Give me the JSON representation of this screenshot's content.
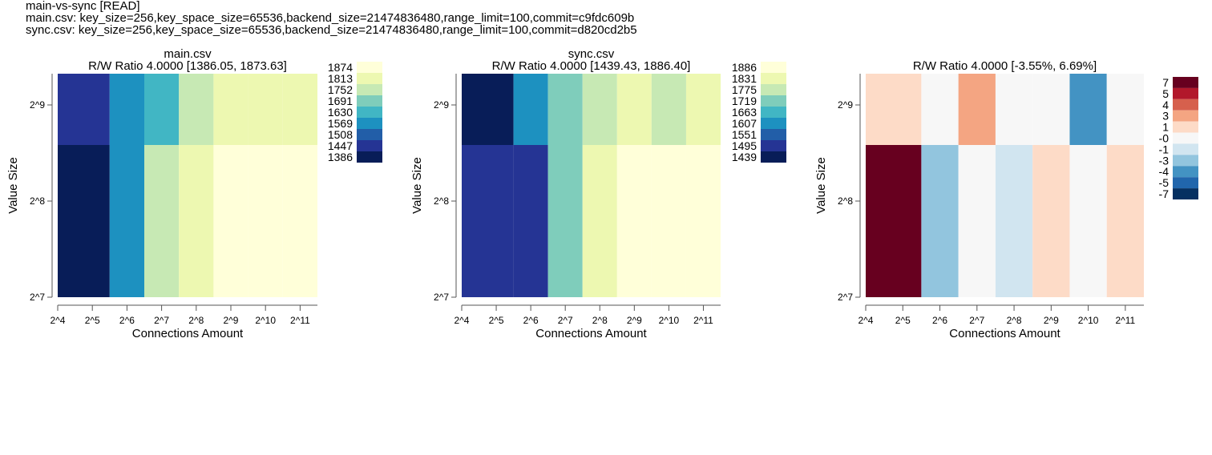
{
  "header": {
    "title": "main-vs-sync [READ]",
    "line1": "main.csv: key_size=256,key_space_size=65536,backend_size=21474836480,range_limit=100,commit=c9fdc609b",
    "line2": "sync.csv: key_size=256,key_space_size=65536,backend_size=21474836480,range_limit=100,commit=d820cd2b5"
  },
  "chart_data": [
    {
      "type": "heatmap",
      "title": "main.csv",
      "subtitle": "R/W Ratio 4.0000 [1386.05, 1873.63]",
      "xlabel": "Connections Amount",
      "ylabel": "Value Size",
      "x_ticks": [
        "2^4",
        "2^5",
        "2^6",
        "2^7",
        "2^8",
        "2^9",
        "2^10",
        "2^11"
      ],
      "y_ticks": [
        "2^9",
        "2^8",
        "2^7"
      ],
      "legend_labels": [
        "1874",
        "1813",
        "1752",
        "1691",
        "1630",
        "1569",
        "1508",
        "1447",
        "1386"
      ],
      "colors": [
        "#ffffd9",
        "#edf8b1",
        "#c7e9b4",
        "#7fcdbb",
        "#41b6c4",
        "#1d91c0",
        "#225ea8",
        "#253494",
        "#081d58"
      ],
      "columns": [
        "2^5",
        "2^6",
        "2^7",
        "2^8",
        "2^9",
        "2^10",
        "2^11"
      ],
      "rows": [
        {
          "value_size": "2^9",
          "values": [
            1450,
            1570,
            1635,
            1750,
            1812,
            1812,
            1812
          ]
        },
        {
          "value_size": "2^8",
          "values": [
            1386,
            1570,
            1752,
            1812,
            1873,
            1873,
            1873
          ]
        }
      ]
    },
    {
      "type": "heatmap",
      "title": "sync.csv",
      "subtitle": "R/W Ratio 4.0000 [1439.43, 1886.40]",
      "xlabel": "Connections Amount",
      "ylabel": "Value Size",
      "x_ticks": [
        "2^4",
        "2^5",
        "2^6",
        "2^7",
        "2^8",
        "2^9",
        "2^10",
        "2^11"
      ],
      "y_ticks": [
        "2^9",
        "2^8",
        "2^7"
      ],
      "legend_labels": [
        "1886",
        "1831",
        "1775",
        "1719",
        "1663",
        "1607",
        "1551",
        "1495",
        "1439"
      ],
      "colors": [
        "#ffffd9",
        "#edf8b1",
        "#c7e9b4",
        "#7fcdbb",
        "#41b6c4",
        "#1d91c0",
        "#225ea8",
        "#253494",
        "#081d58"
      ],
      "columns": [
        "2^5",
        "2^6",
        "2^7",
        "2^8",
        "2^9",
        "2^10",
        "2^11"
      ],
      "rows": [
        {
          "value_size": "2^9",
          "values": [
            1440,
            1610,
            1720,
            1776,
            1832,
            1776,
            1832
          ]
        },
        {
          "value_size": "2^8",
          "values": [
            1497,
            1497,
            1720,
            1832,
            1886,
            1886,
            1886
          ]
        }
      ]
    },
    {
      "type": "heatmap",
      "title": "",
      "subtitle": "R/W Ratio 4.0000 [-3.55%, 6.69%]",
      "xlabel": "Connections Amount",
      "ylabel": "Value Size",
      "x_ticks": [
        "2^4",
        "2^5",
        "2^6",
        "2^7",
        "2^8",
        "2^9",
        "2^10",
        "2^11"
      ],
      "y_ticks": [
        "2^9",
        "2^8",
        "2^7"
      ],
      "legend_labels": [
        "7",
        "5",
        "4",
        "3",
        "1",
        "-0",
        "-1",
        "-3",
        "-4",
        "-5",
        "-7"
      ],
      "colors": [
        "#67001f",
        "#b2182b",
        "#d6604d",
        "#f4a582",
        "#fddbc7",
        "#f7f7f7",
        "#d1e5f0",
        "#92c5de",
        "#4393c3",
        "#2166ac",
        "#053061"
      ],
      "columns": [
        "2^5",
        "2^6",
        "2^7",
        "2^8",
        "2^9",
        "2^10",
        "2^11"
      ],
      "rows": [
        {
          "value_size": "2^9",
          "values": [
            1.0,
            0.0,
            3.0,
            0.0,
            0.0,
            -3.55,
            0.0
          ]
        },
        {
          "value_size": "2^8",
          "values": [
            6.69,
            -2.5,
            0.0,
            -1.0,
            1.0,
            0.0,
            1.0
          ]
        }
      ]
    }
  ]
}
